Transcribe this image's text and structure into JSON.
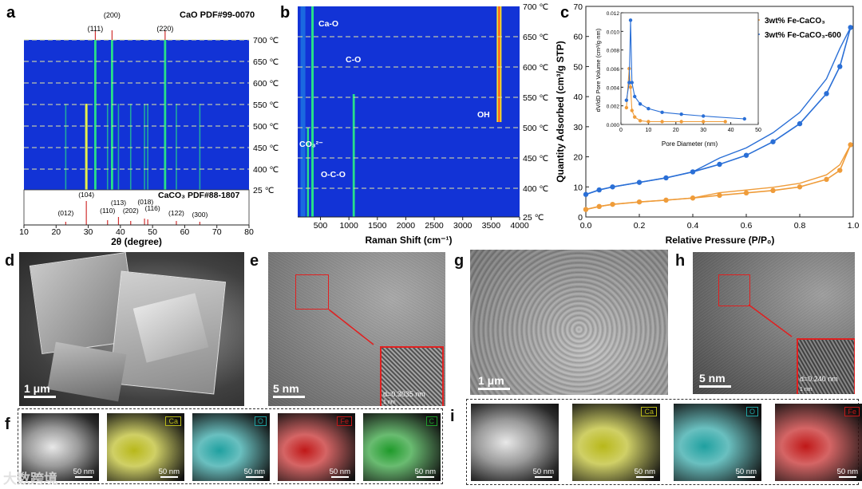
{
  "panel_labels": {
    "a": "a",
    "b": "b",
    "c": "c",
    "d": "d",
    "e": "e",
    "f": "f",
    "g": "g",
    "h": "h",
    "i": "i"
  },
  "colors": {
    "map_bg": "#1233d6",
    "peak": "#27e08a",
    "caco3": "#d03030",
    "series_orange": "#ef9c3a",
    "series_blue": "#2a6fd6"
  },
  "chart_data": [
    {
      "type": "heatmap",
      "panel": "a",
      "title_top": "CaO PDF#99-0070",
      "title_bottom": "CaCO₃ PDF#88-1807",
      "xlabel": "2θ (degree)",
      "xlim": [
        10,
        80
      ],
      "xticks": [
        "10",
        "20",
        "30",
        "40",
        "50",
        "60",
        "70",
        "80"
      ],
      "temperatures": [
        "700 ℃",
        "650 ℃",
        "600 ℃",
        "550 ℃",
        "500 ℃",
        "450 ℃",
        "400 ℃",
        "25 ℃"
      ],
      "cao_ref": [
        {
          "x": 32.2,
          "label": "(111)"
        },
        {
          "x": 37.4,
          "label": "(200)"
        },
        {
          "x": 53.9,
          "label": "(220)"
        }
      ],
      "caco3_ref": [
        {
          "x": 23.0,
          "label": "(012)"
        },
        {
          "x": 29.4,
          "label": "(104)"
        },
        {
          "x": 36.0,
          "label": "(110)"
        },
        {
          "x": 39.4,
          "label": "(113)"
        },
        {
          "x": 43.2,
          "label": "(202)"
        },
        {
          "x": 47.5,
          "label": "(018)"
        },
        {
          "x": 48.5,
          "label": "(116)"
        },
        {
          "x": 57.4,
          "label": "(122)"
        },
        {
          "x": 64.7,
          "label": "(300)"
        }
      ]
    },
    {
      "type": "heatmap",
      "panel": "b",
      "xlabel": "Raman Shift (cm⁻¹)",
      "xlim": [
        100,
        4000
      ],
      "xticks": [
        "500",
        "1000",
        "1500",
        "2000",
        "2500",
        "3000",
        "3500",
        "4000"
      ],
      "temperatures": [
        "700 ℃",
        "650 ℃",
        "600 ℃",
        "550 ℃",
        "500 ℃",
        "450 ℃",
        "400 ℃",
        "25 ℃"
      ],
      "annotations": [
        "Ca-O",
        "C-O",
        "OH",
        "CO₃²⁻",
        "O-C-O"
      ]
    },
    {
      "type": "line",
      "panel": "c",
      "xlabel": "Relative Pressure (P/P₀)",
      "ylabel": "Quantity Adsorbed (cm³/g STP)",
      "xlim": [
        0.0,
        1.0
      ],
      "ylim": [
        0,
        70
      ],
      "xticks": [
        "0.0",
        "0.2",
        "0.4",
        "0.6",
        "0.8",
        "1.0"
      ],
      "yticks": [
        "0",
        "10",
        "20",
        "30",
        "40",
        "50",
        "60",
        "70"
      ],
      "series": [
        {
          "name": "3wt% Fe-CaCO₃",
          "x": [
            0.0,
            0.05,
            0.1,
            0.2,
            0.3,
            0.4,
            0.5,
            0.6,
            0.7,
            0.8,
            0.9,
            0.95,
            0.99
          ],
          "y": [
            2.5,
            3.5,
            4.2,
            5.0,
            5.6,
            6.3,
            7.2,
            8.0,
            8.8,
            10.0,
            12.5,
            15.5,
            24.0
          ]
        },
        {
          "name": "3wt% Fe-CaCO₃-600",
          "x": [
            0.0,
            0.05,
            0.1,
            0.2,
            0.3,
            0.4,
            0.5,
            0.6,
            0.7,
            0.8,
            0.9,
            0.95,
            0.99
          ],
          "y": [
            7.5,
            9.0,
            10.0,
            11.5,
            13.0,
            15.0,
            17.5,
            20.5,
            25.0,
            31.0,
            41.0,
            50.0,
            63.0
          ]
        }
      ],
      "inset": {
        "xlabel": "Pore Diameter (nm)",
        "ylabel": "dV/dD Pore Volume (cm³/g·nm)",
        "xlim": [
          0,
          50
        ],
        "ylim": [
          0,
          0.012
        ],
        "xticks": [
          "0",
          "10",
          "20",
          "30",
          "40",
          "50"
        ],
        "yticks": [
          "0.000",
          "0.002",
          "0.004",
          "0.006",
          "0.008",
          "0.010",
          "0.012"
        ],
        "series": [
          {
            "name": "3wt% Fe-CaCO₃",
            "x": [
              2,
              3,
              3.5,
              4,
              5,
              7,
              10,
              15,
              22,
              30,
              38
            ],
            "y": [
              0.0018,
              0.006,
              0.004,
              0.0015,
              0.0008,
              0.0004,
              0.0003,
              0.0003,
              0.0003,
              0.0003,
              0.0003
            ]
          },
          {
            "name": "3wt% Fe-CaCO₃-600",
            "x": [
              2,
              3,
              3.5,
              4,
              5,
              7,
              10,
              15,
              22,
              30,
              45
            ],
            "y": [
              0.0026,
              0.0045,
              0.0112,
              0.0045,
              0.003,
              0.0022,
              0.0017,
              0.0013,
              0.0011,
              0.0009,
              0.0006
            ]
          }
        ]
      }
    }
  ],
  "images": {
    "d": {
      "scale": "1 μm"
    },
    "e": {
      "scale": "5 nm",
      "inset_text": "d=0.3035 nm",
      "inset_scale": "1 nm"
    },
    "g": {
      "scale": "1 μm"
    },
    "h": {
      "scale": "5 nm",
      "inset_text": "d=0.240 nm",
      "inset_scale": "1 nm"
    }
  },
  "maps_f": [
    {
      "label": "",
      "scale": "50 nm",
      "color": "#888888"
    },
    {
      "label": "Ca",
      "scale": "50 nm",
      "color": "#b8b81a"
    },
    {
      "label": "O",
      "scale": "50 nm",
      "color": "#1fa0a0"
    },
    {
      "label": "Fe",
      "scale": "50 nm",
      "color": "#c01818"
    },
    {
      "label": "C",
      "scale": "50 nm",
      "color": "#1f9a2a"
    }
  ],
  "maps_i": [
    {
      "label": "",
      "scale": "50 nm",
      "color": "#888888"
    },
    {
      "label": "Ca",
      "scale": "50 nm",
      "color": "#b8b81a"
    },
    {
      "label": "O",
      "scale": "50 nm",
      "color": "#1fa0a0"
    },
    {
      "label": "Fe",
      "scale": "50 nm",
      "color": "#c01818"
    }
  ],
  "watermark": "大数跨境"
}
